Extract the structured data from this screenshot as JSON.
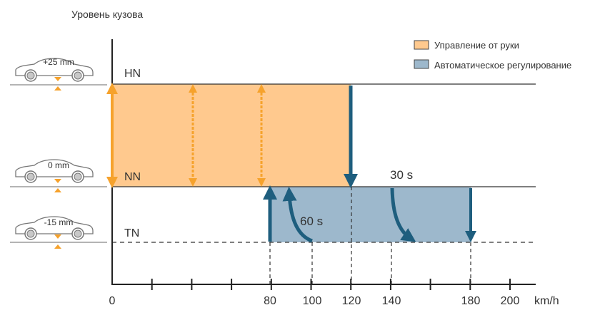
{
  "title": "Уровень кузова",
  "legend": [
    {
      "label": "Управление от руки",
      "color": "#ffc98e",
      "border": "#444444"
    },
    {
      "label": "Автоматическое регулирование",
      "color": "#9db8cc",
      "border": "#444444"
    }
  ],
  "levels": [
    {
      "name": "HN",
      "offset": "+25 mm"
    },
    {
      "name": "NN",
      "offset": "0 mm"
    },
    {
      "name": "TN",
      "offset": "-15 mm"
    }
  ],
  "x_axis": {
    "unit": "km/h",
    "tick_labels": [
      "0",
      "80",
      "100",
      "120",
      "140",
      "180",
      "200"
    ],
    "ticks": [
      0,
      20,
      40,
      60,
      80,
      100,
      120,
      140,
      160,
      180,
      200
    ]
  },
  "manual_region": {
    "from": 0,
    "to": 120
  },
  "auto_region": {
    "from": 80,
    "to": 180
  },
  "delay_labels": {
    "short": "30 s",
    "long": "60 s"
  },
  "colors": {
    "manual_fill": "#ffc98e",
    "manual_arrow": "#f6a22c",
    "auto_fill": "#9db8cc",
    "auto_arrow": "#1e5e7e",
    "axis": "#222222",
    "level_line": "#333333"
  }
}
